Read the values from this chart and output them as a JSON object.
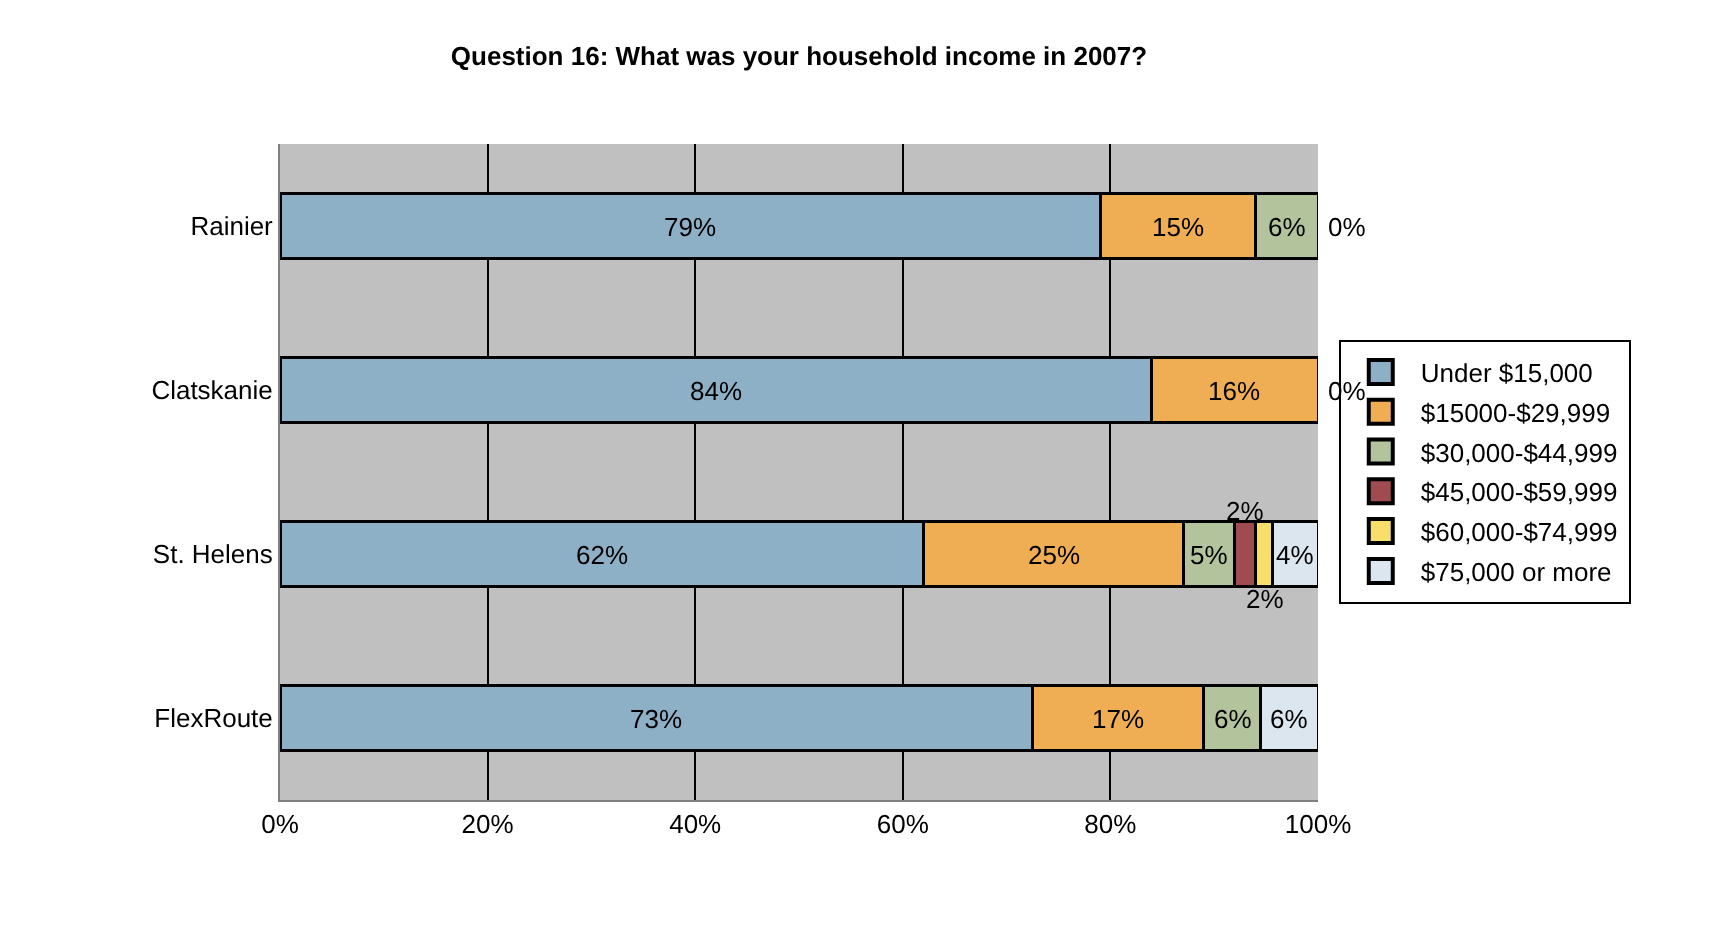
{
  "chart_data": {
    "type": "bar",
    "orientation": "horizontal",
    "stacked": true,
    "title": "Question 16: What was your household income in 2007?",
    "categories": [
      "Rainier",
      "Clatskanie",
      "St. Helens",
      "FlexRoute"
    ],
    "xlim": [
      0,
      100
    ],
    "xticks": [
      {
        "value": 0,
        "label": "0%"
      },
      {
        "value": 20,
        "label": "20%"
      },
      {
        "value": 40,
        "label": "40%"
      },
      {
        "value": 60,
        "label": "60%"
      },
      {
        "value": 80,
        "label": "80%"
      },
      {
        "value": 100,
        "label": "100%"
      }
    ],
    "grid": "x",
    "legend": "right",
    "series": [
      {
        "name": "Under $15,000",
        "color": "#8eb0c6",
        "values": [
          79,
          84,
          62,
          72.5
        ],
        "value_labels": [
          "79%",
          "84%",
          "62%",
          "73%"
        ]
      },
      {
        "name": "$15000-$29,999",
        "color": "#f0ae54",
        "values": [
          15,
          16,
          25,
          16.5
        ],
        "value_labels": [
          "15%",
          "16%",
          "25%",
          "17%"
        ]
      },
      {
        "name": "$30,000-$44,999",
        "color": "#b3c49c",
        "values": [
          6,
          0,
          5,
          5.5
        ],
        "value_labels": [
          "6%",
          null,
          "5%",
          "6%"
        ]
      },
      {
        "name": "$45,000-$59,999",
        "color": "#a04b4f",
        "values": [
          0,
          0,
          2,
          0
        ],
        "value_labels": [
          null,
          null,
          "2%",
          null
        ]
      },
      {
        "name": "$60,000-$74,999",
        "color": "#f8de6a",
        "values": [
          0,
          0,
          1.6,
          0
        ],
        "value_labels": [
          null,
          null,
          "2%",
          null
        ]
      },
      {
        "name": "$75,000 or more",
        "color": "#dce6ef",
        "values": [
          0,
          0,
          4.4,
          5.5
        ],
        "value_labels": [
          "0%",
          "0%",
          "4%",
          "6%"
        ]
      }
    ]
  }
}
